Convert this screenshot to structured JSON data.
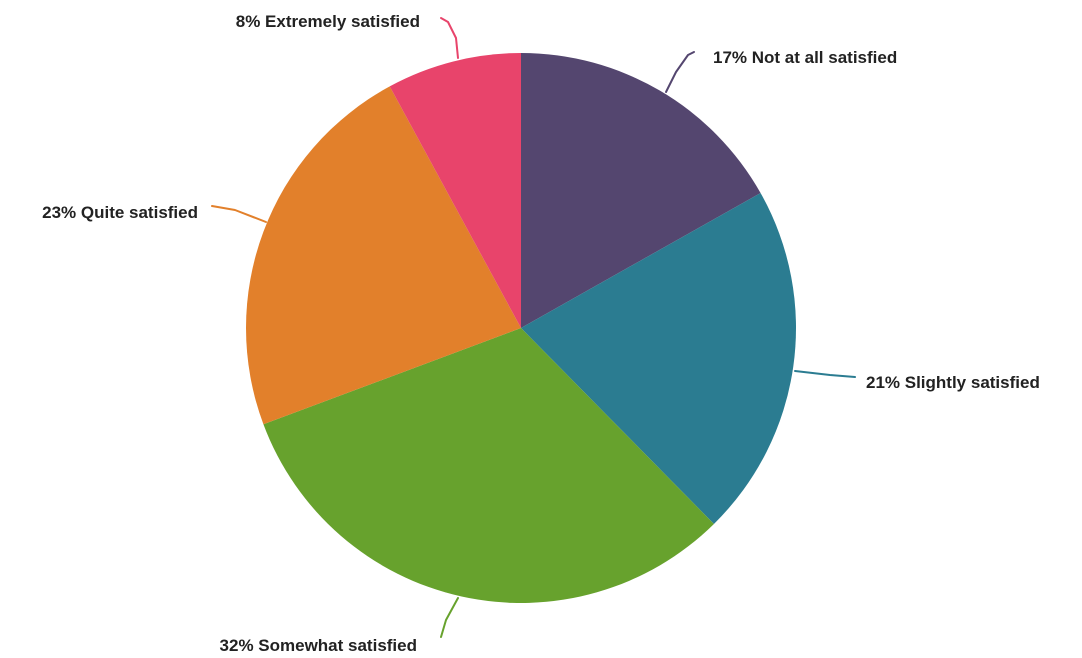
{
  "chart_data": {
    "type": "pie",
    "title": "",
    "start_angle_deg": 0,
    "direction": "clockwise",
    "slices": [
      {
        "label": "Not at all satisfied",
        "value": 17,
        "label_text": "17% Not at all satisfied",
        "color": "#54466f"
      },
      {
        "label": "Slightly satisfied",
        "value": 21,
        "label_text": "21% Slightly satisfied",
        "color": "#2b7c91"
      },
      {
        "label": "Somewhat satisfied",
        "value": 32,
        "label_text": "32% Somewhat satisfied",
        "color": "#67a22d"
      },
      {
        "label": "Quite satisfied",
        "value": 23,
        "label_text": "23% Quite satisfied",
        "color": "#e2802b"
      },
      {
        "label": "Extremely satisfied",
        "value": 8,
        "label_text": "8% Extremely satisfied",
        "color": "#e8446b"
      }
    ]
  }
}
